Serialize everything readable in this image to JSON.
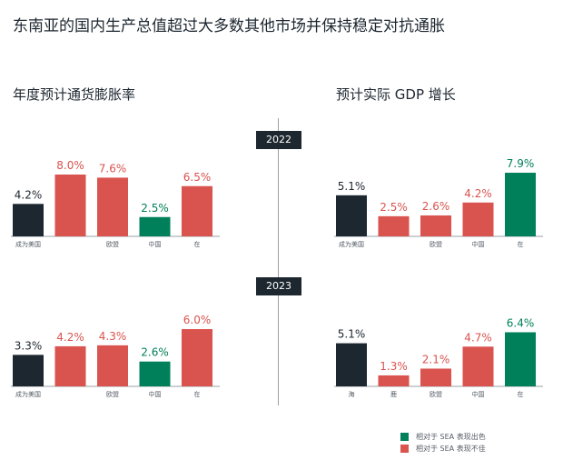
{
  "title": "东南亚的国内生产总值超过大多数其他市场并保持稳定对抗通胀",
  "sections": {
    "inflation": "年度预计通货膨胀率",
    "gdp": "预计实际 GDP 增长"
  },
  "years": [
    "2022",
    "2023"
  ],
  "colors": {
    "dark": "#1d2730",
    "red": "#d9534f",
    "green": "#00805a"
  },
  "legend": [
    {
      "label": "相对于 SEA 表现出色",
      "color": "#00805a"
    },
    {
      "label": "相对于 SEA 表现不佳",
      "color": "#d9534f"
    }
  ],
  "chart_data": [
    {
      "type": "bar",
      "title": "年度预计通货膨胀率",
      "year": "2022",
      "categories": [
        "成为美国",
        "",
        "欧盟",
        "中国",
        "在"
      ],
      "values": [
        4.2,
        8.0,
        7.6,
        2.5,
        6.5
      ],
      "value_labels": [
        "4.2%",
        "8.0%",
        "7.6%",
        "2.5%",
        "6.5%"
      ],
      "colors": [
        "dark",
        "red",
        "red",
        "green",
        "red"
      ]
    },
    {
      "type": "bar",
      "title": "预计实际 GDP 增长",
      "year": "2022",
      "categories": [
        "成为美国",
        "",
        "欧盟",
        "中国",
        "在"
      ],
      "values": [
        5.1,
        2.5,
        2.6,
        4.2,
        7.9
      ],
      "value_labels": [
        "5.1%",
        "2.5%",
        "2.6%",
        "4.2%",
        "7.9%"
      ],
      "colors": [
        "dark",
        "red",
        "red",
        "red",
        "green"
      ]
    },
    {
      "type": "bar",
      "title": "年度预计通货膨胀率",
      "year": "2023",
      "categories": [
        "成为美国",
        "",
        "欧盟",
        "中国",
        "在"
      ],
      "values": [
        3.3,
        4.2,
        4.3,
        2.6,
        6.0
      ],
      "value_labels": [
        "3.3%",
        "4.2%",
        "4.3%",
        "2.6%",
        "6.0%"
      ],
      "colors": [
        "dark",
        "red",
        "red",
        "green",
        "red"
      ]
    },
    {
      "type": "bar",
      "title": "预计实际 GDP 增长",
      "year": "2023",
      "categories": [
        "海",
        "鹿",
        "欧盟",
        "中国",
        "在"
      ],
      "values": [
        5.1,
        1.3,
        2.1,
        4.7,
        6.4
      ],
      "value_labels": [
        "5.1%",
        "1.3%",
        "2.1%",
        "4.7%",
        "6.4%"
      ],
      "colors": [
        "dark",
        "red",
        "red",
        "red",
        "green"
      ]
    }
  ]
}
